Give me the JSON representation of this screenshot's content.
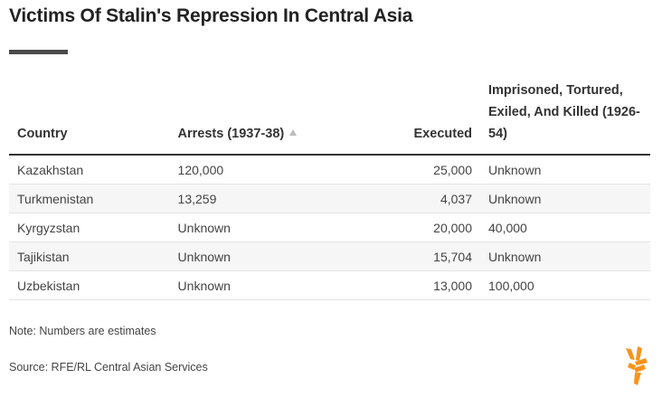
{
  "title": "Victims Of Stalin's Repression In Central Asia",
  "colors": {
    "accent": "#f7941d",
    "rule": "#4a4a4a"
  },
  "chart_data": {
    "type": "table",
    "columns": [
      "Country",
      "Arrests (1937-38)",
      "Executed",
      "Imprisoned, Tortured, Exiled, And Killed (1926-54)"
    ],
    "sort": {
      "column": "Arrests (1937-38)",
      "icon": "sort-ascending-icon"
    },
    "rows": [
      [
        "Kazakhstan",
        "120,000",
        "25,000",
        "Unknown"
      ],
      [
        "Turkmenistan",
        "13,259",
        "4,037",
        "Unknown"
      ],
      [
        "Kyrgyzstan",
        "Unknown",
        "20,000",
        "40,000"
      ],
      [
        "Tajikistan",
        "Unknown",
        "15,704",
        "Unknown"
      ],
      [
        "Uzbekistan",
        "Unknown",
        "13,000",
        "100,000"
      ]
    ]
  },
  "footer": {
    "note": "Note: Numbers are estimates",
    "source": "Source: RFE/RL Central Asian Services",
    "logo": "rferl-logo-icon"
  }
}
